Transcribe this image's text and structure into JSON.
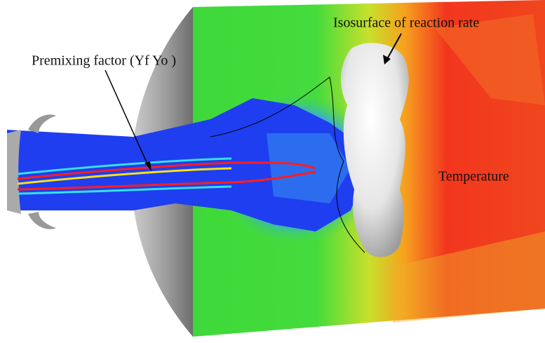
{
  "labels": {
    "premixing": "Premixing factor (Yf Yo )",
    "isosurface": "Isosurface of reaction rate",
    "temperature": "Temperature"
  }
}
